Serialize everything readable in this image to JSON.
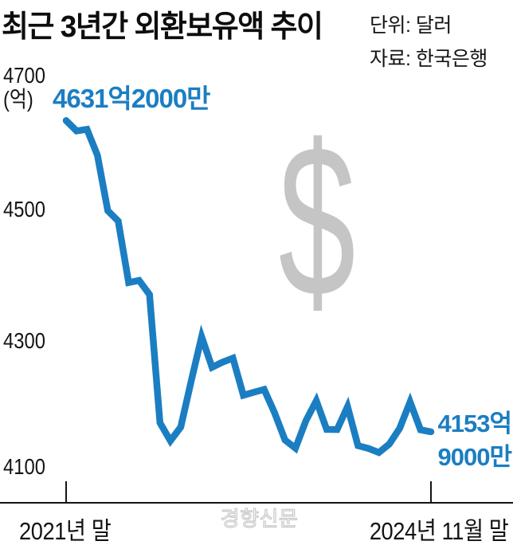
{
  "header": {
    "title": "최근 3년간 외환보유액 추이",
    "unit_label": "단위: 달러",
    "source_label": "자료: 한국은행"
  },
  "chart_data": {
    "type": "line",
    "title": "최근 3년간 외환보유액 추이",
    "unit": "달러",
    "source": "한국은행",
    "y_axis_unit_label": "(억)",
    "yticks": [
      "4700",
      "4500",
      "4300",
      "4100"
    ],
    "ylim": [
      4060,
      4720
    ],
    "grid": false,
    "legend": "none",
    "x_start_label": "2021년 말",
    "x_end_label": "2024년 11월 말",
    "x": [
      "2021-12",
      "2022-01",
      "2022-02",
      "2022-03",
      "2022-04",
      "2022-05",
      "2022-06",
      "2022-07",
      "2022-08",
      "2022-09",
      "2022-10",
      "2022-11",
      "2022-12",
      "2023-01",
      "2023-02",
      "2023-03",
      "2023-04",
      "2023-05",
      "2023-06",
      "2023-07",
      "2023-08",
      "2023-09",
      "2023-10",
      "2023-11",
      "2023-12",
      "2024-01",
      "2024-02",
      "2024-03",
      "2024-04",
      "2024-05",
      "2024-06",
      "2024-07",
      "2024-08",
      "2024-09",
      "2024-10",
      "2024-11"
    ],
    "values": [
      4631.2,
      4615.3,
      4617.7,
      4578.1,
      4493.0,
      4477.1,
      4382.8,
      4386.1,
      4364.3,
      4167.7,
      4140.1,
      4161.1,
      4231.6,
      4299.7,
      4252.9,
      4260.7,
      4266.8,
      4209.8,
      4214.5,
      4218.8,
      4183.0,
      4141.2,
      4128.7,
      4170.8,
      4201.5,
      4157.6,
      4157.3,
      4192.5,
      4132.6,
      4128.3,
      4122.1,
      4135.1,
      4159.2,
      4199.7,
      4156.9,
      4153.9
    ],
    "series_name": "외환보유액",
    "line_color": "#1b7ec2",
    "annotations": {
      "start_value_label": "4631억2000만",
      "end_value_label_line1": "4153억",
      "end_value_label_line2": "9000만"
    },
    "watermark_symbol": "$",
    "watermark_symbol_color": "#c5c5c5",
    "press_watermark": "경향신문"
  }
}
